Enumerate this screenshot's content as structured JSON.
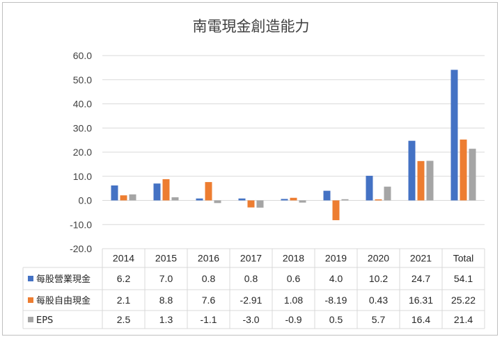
{
  "chart_data": {
    "type": "bar",
    "title": "南電現金創造能力",
    "categories": [
      "2014",
      "2015",
      "2016",
      "2017",
      "2018",
      "2019",
      "2020",
      "2021",
      "Total"
    ],
    "ylim": [
      -20,
      60
    ],
    "yticks": [
      "60.0",
      "50.0",
      "40.0",
      "30.0",
      "20.0",
      "10.0",
      "0.0",
      "-10.0",
      "-20.0"
    ],
    "ytick_values": [
      60,
      50,
      40,
      30,
      20,
      10,
      0,
      -10,
      -20
    ],
    "grid": true,
    "legend": "data-table",
    "series": [
      {
        "name": "每股營業現金",
        "color": "#4472C4",
        "values": [
          6.2,
          7.0,
          0.8,
          0.8,
          0.6,
          4.0,
          10.2,
          24.7,
          54.1
        ],
        "labels": [
          "6.2",
          "7.0",
          "0.8",
          "0.8",
          "0.6",
          "4.0",
          "10.2",
          "24.7",
          "54.1"
        ]
      },
      {
        "name": "每股自由現金",
        "color": "#ED7D31",
        "values": [
          2.1,
          8.8,
          7.6,
          -2.91,
          1.08,
          -8.19,
          0.43,
          16.31,
          25.22
        ],
        "labels": [
          "2.1",
          "8.8",
          "7.6",
          "-2.91",
          "1.08",
          "-8.19",
          "0.43",
          "16.31",
          "25.22"
        ]
      },
      {
        "name": "EPS",
        "color": "#A5A5A5",
        "values": [
          2.5,
          1.3,
          -1.1,
          -3.0,
          -0.9,
          0.5,
          5.7,
          16.4,
          21.4
        ],
        "labels": [
          "2.5",
          "1.3",
          "-1.1",
          "-3.0",
          "-0.9",
          "0.5",
          "5.7",
          "16.4",
          "21.4"
        ]
      }
    ]
  }
}
